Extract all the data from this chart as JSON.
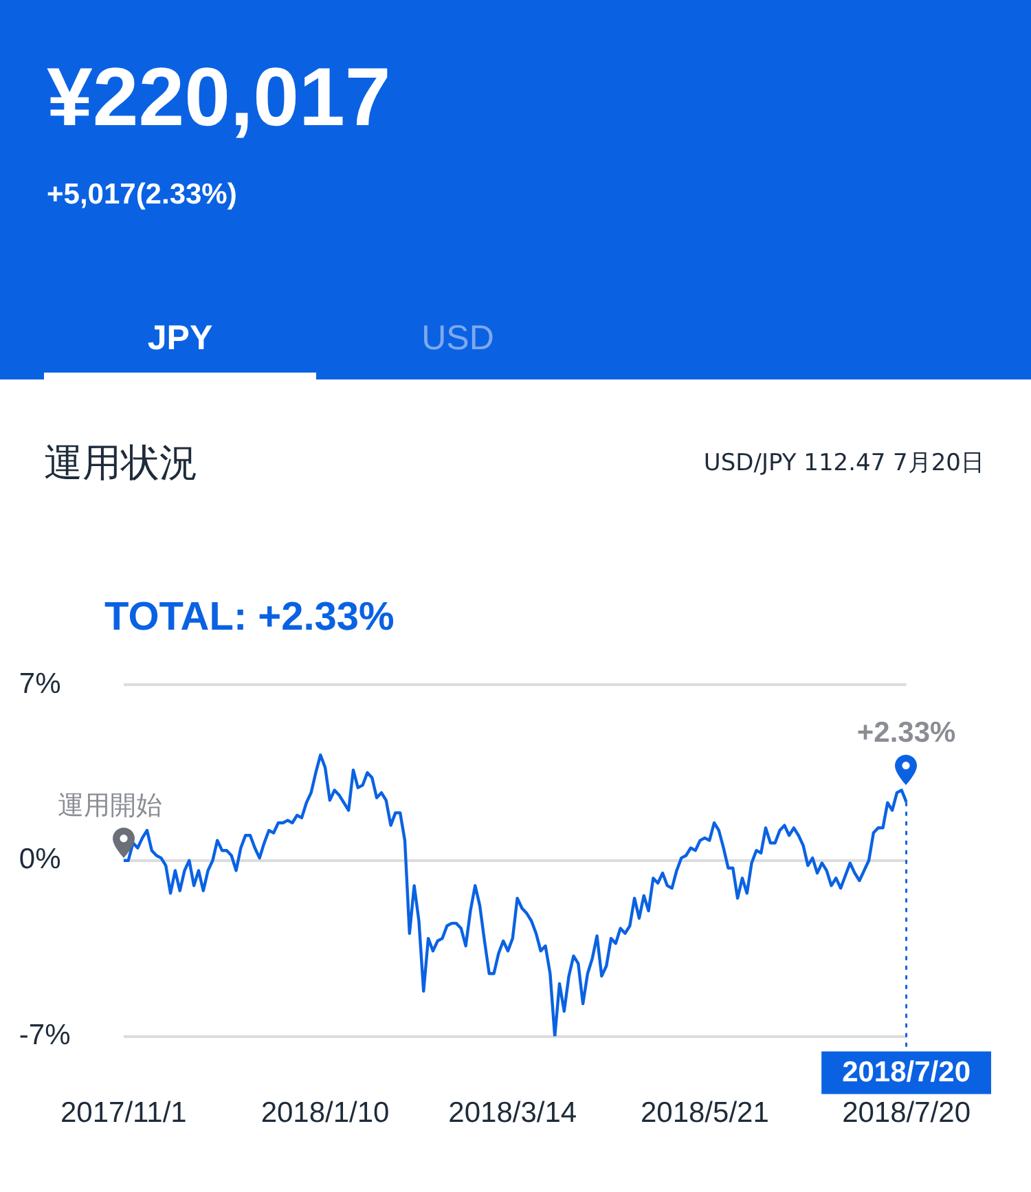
{
  "chart_data": {
    "type": "line",
    "title": "¥220,017",
    "subtitle": "+5,017(2.33%)",
    "annotations": [
      "JPY",
      "USD",
      "運用状況",
      "USD/JPY 112.47 7月20日",
      "TOTAL: +2.33%",
      {
        "text": "運用開始",
        "x": "2017/11/1",
        "y": 0
      },
      {
        "text": "+2.33%",
        "x": "2018/7/20",
        "y": 2.33
      }
    ],
    "categories": [
      "2017/11/1",
      null,
      null,
      null,
      null,
      null,
      null,
      null,
      null,
      null,
      null,
      null,
      null,
      null,
      null,
      null,
      null,
      null,
      null,
      null,
      null,
      null,
      null,
      null,
      null,
      null,
      null,
      null,
      null,
      null,
      null,
      null,
      null,
      null,
      null,
      null,
      null,
      null,
      null,
      null,
      null,
      null,
      null,
      "2018/1/10",
      null,
      null,
      null,
      null,
      null,
      null,
      null,
      null,
      null,
      null,
      null,
      null,
      null,
      null,
      null,
      null,
      null,
      null,
      null,
      null,
      null,
      null,
      null,
      null,
      null,
      null,
      null,
      null,
      null,
      null,
      null,
      null,
      null,
      null,
      null,
      null,
      null,
      null,
      null,
      "2018/3/14",
      null,
      null,
      null,
      null,
      null,
      null,
      null,
      null,
      null,
      null,
      null,
      null,
      null,
      null,
      null,
      null,
      null,
      null,
      null,
      null,
      null,
      null,
      null,
      null,
      null,
      null,
      null,
      null,
      null,
      null,
      null,
      null,
      null,
      null,
      null,
      null,
      null,
      null,
      null,
      null,
      "2018/5/21",
      null,
      null,
      null,
      null,
      null,
      null,
      null,
      null,
      null,
      null,
      null,
      null,
      null,
      null,
      null,
      null,
      null,
      null,
      null,
      null,
      null,
      null,
      null,
      null,
      null,
      null,
      null,
      null,
      null,
      null,
      null,
      null,
      null,
      null,
      null,
      null,
      null,
      null,
      null,
      null,
      null,
      null,
      "2018/7/20"
    ],
    "series": [
      {
        "color": "#0a62e3",
        "values": [
          0,
          0,
          0.7,
          0.5,
          0.9,
          1.2,
          0.4,
          0.2,
          0.1,
          -0.2,
          -1.3,
          -0.4,
          -1.2,
          -0.4,
          0,
          -1.0,
          -0.4,
          -1.2,
          -0.4,
          0,
          0.8,
          0.4,
          0.4,
          0.2,
          -0.4,
          0.5,
          1.0,
          1.0,
          0.5,
          0.1,
          0.7,
          1.2,
          1.1,
          1.5,
          1.5,
          1.6,
          1.5,
          1.8,
          1.7,
          2.3,
          2.7,
          3.5,
          4.2,
          3.7,
          2.4,
          2.8,
          2.6,
          2.3,
          2.0,
          3.6,
          2.9,
          3.0,
          3.5,
          3.3,
          2.5,
          2.7,
          2.4,
          1.4,
          1.9,
          1.9,
          0.8,
          -2.9,
          -1.0,
          -2.4,
          -5.2,
          -3.1,
          -3.6,
          -3.2,
          -3.1,
          -2.6,
          -2.5,
          -2.5,
          -2.7,
          -3.4,
          -2.0,
          -1.0,
          -1.8,
          -3.2,
          -4.5,
          -4.5,
          -3.7,
          -3.2,
          -3.6,
          -3.1,
          -1.5,
          -1.9,
          -2.1,
          -2.4,
          -2.9,
          -3.6,
          -3.4,
          -4.5,
          -7.0,
          -4.9,
          -6.0,
          -4.6,
          -3.8,
          -4.1,
          -5.7,
          -4.5,
          -3.9,
          -3.0,
          -4.6,
          -4.2,
          -3.1,
          -3.3,
          -2.7,
          -2.9,
          -2.6,
          -1.5,
          -2.3,
          -1.4,
          -2.0,
          -0.7,
          -0.9,
          -0.5,
          -1.0,
          -1.1,
          -0.4,
          0.1,
          0.2,
          0.5,
          0.4,
          0.8,
          0.9,
          0.8,
          1.5,
          1.2,
          0.5,
          -0.3,
          -0.3,
          -1.5,
          -0.7,
          -1.3,
          -0.1,
          0.4,
          0.3,
          1.3,
          0.7,
          0.7,
          1.2,
          1.4,
          1.0,
          1.3,
          1.0,
          0.6,
          -0.2,
          0.1,
          -0.5,
          -0.1,
          -0.4,
          -1.0,
          -0.7,
          -1.1,
          -0.6,
          -0.1,
          -0.5,
          -0.8,
          -0.4,
          0,
          1.1,
          1.3,
          1.3,
          2.3,
          2.0,
          2.7,
          2.8,
          2.33
        ]
      }
    ],
    "ylim": [
      -7,
      7
    ],
    "yticks": [
      {
        "value": -7,
        "label": "-7%"
      },
      {
        "value": 0,
        "label": "0%"
      },
      {
        "value": 7,
        "label": "7%"
      }
    ],
    "ref_lines": [
      {
        "axis": "x",
        "value": "2018/7/20",
        "label": "2018/7/20",
        "color": "#0a62e3",
        "line_style": "dotted"
      }
    ],
    "grid": "y",
    "marker": "none",
    "line_style": "solid",
    "legend": false
  }
}
